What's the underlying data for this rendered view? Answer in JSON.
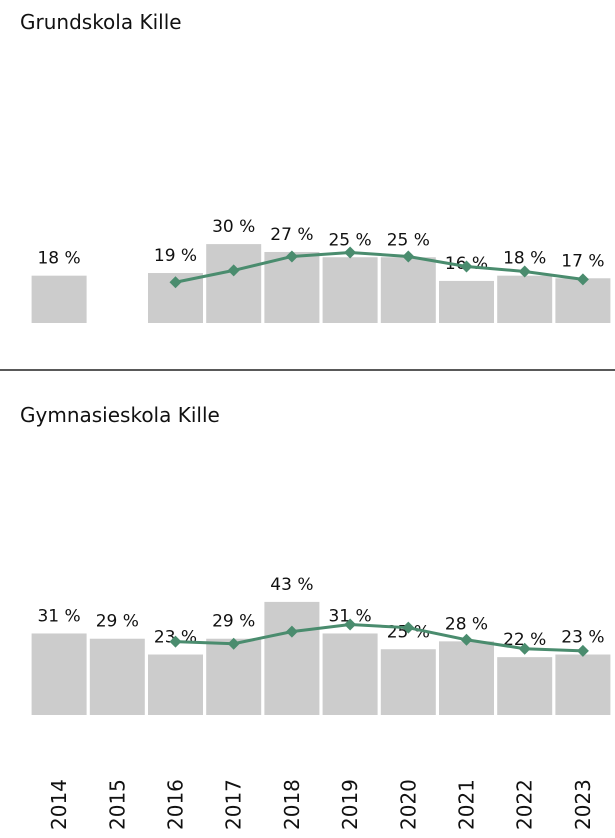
{
  "chart_data": [
    {
      "type": "bar",
      "title": "Grundskola Kille",
      "categories": [
        null,
        null,
        null,
        null,
        null,
        null,
        null,
        null,
        null,
        null
      ],
      "series": [
        {
          "type": "bar",
          "color": "#cccccc",
          "values": [
            18,
            null,
            19,
            30,
            27,
            25,
            25,
            16,
            18,
            17
          ],
          "value_labels": [
            "18 %",
            null,
            "19 %",
            "30 %",
            "27 %",
            "25 %",
            "25 %",
            "16 %",
            "18 %",
            "17 %"
          ]
        },
        {
          "type": "line",
          "color": "#4a8c6e",
          "values": [
            null,
            null,
            15.5,
            20,
            25.3,
            26.8,
            25.3,
            21.5,
            19.6,
            16.6
          ]
        }
      ]
    },
    {
      "type": "bar",
      "title": "Gymnasieskola Kille",
      "categories": [
        "2014",
        "2015",
        "2016",
        "2017",
        "2018",
        "2019",
        "2020",
        "2021",
        "2022",
        "2023"
      ],
      "series": [
        {
          "type": "bar",
          "color": "#cccccc",
          "values": [
            31,
            29,
            23,
            29,
            43,
            31,
            25,
            28,
            22,
            23
          ],
          "value_labels": [
            "31 %",
            "29 %",
            "23 %",
            "29 %",
            "43 %",
            "31 %",
            "25 %",
            "28 %",
            "22 %",
            "23 %"
          ]
        },
        {
          "type": "line",
          "color": "#4a8c6e",
          "values": [
            null,
            null,
            27.9,
            27.1,
            31.7,
            34.4,
            33.2,
            28.6,
            25.2,
            24.4
          ]
        }
      ]
    }
  ]
}
